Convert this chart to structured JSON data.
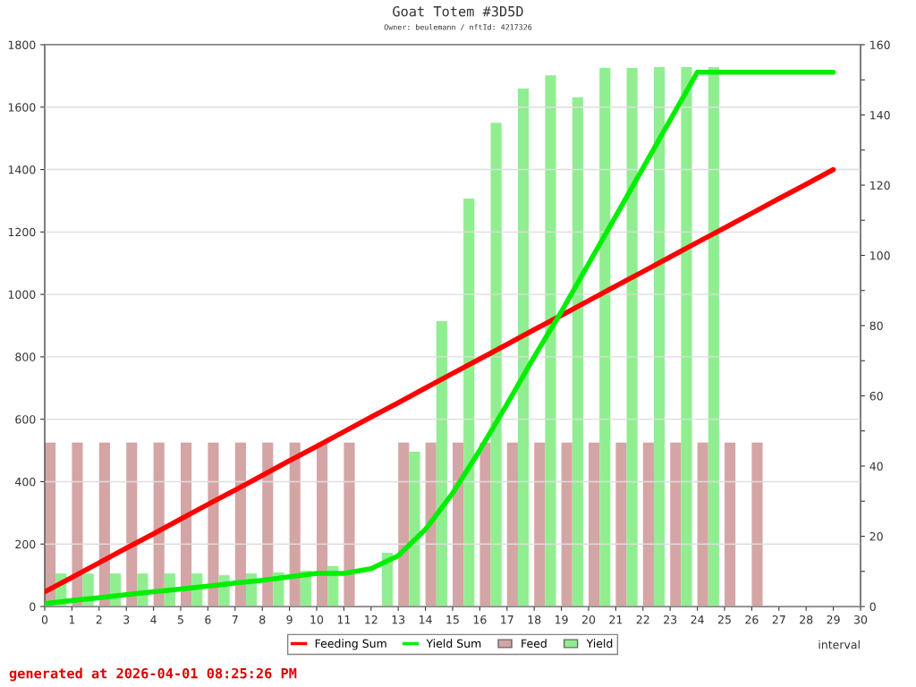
{
  "chart_data": {
    "type": "bar",
    "title": "Goat Totem #3D5D",
    "subtitle": "Owner: beulemann / nftId: 4217326",
    "xlabel": "interval",
    "annotations": [
      "generated at 2026-04-01 08:25:26 PM"
    ],
    "series": [
      {
        "name": "Feeding Sum",
        "type": "line",
        "color": "#ff0000",
        "x": [
          0,
          1,
          2,
          3,
          4,
          5,
          6,
          7,
          8,
          9,
          10,
          11,
          12,
          13,
          14,
          15,
          16,
          17,
          18,
          19,
          20,
          21,
          22,
          23,
          24,
          25,
          26,
          27,
          28,
          29
        ],
        "values": [
          47,
          93,
          140,
          187,
          233,
          280,
          327,
          373,
          420,
          467,
          513,
          560,
          607,
          653,
          700,
          747,
          793,
          840,
          887,
          933,
          980,
          1027,
          1073,
          1120,
          1167,
          1213,
          1260,
          1307,
          1353,
          1400
        ]
      },
      {
        "name": "Yield Sum",
        "type": "line",
        "color": "#00ee00",
        "x": [
          0,
          1,
          2,
          3,
          4,
          5,
          6,
          7,
          8,
          9,
          10,
          11,
          12,
          13,
          14,
          15,
          16,
          17,
          18,
          19,
          20,
          21,
          22,
          23,
          24,
          25,
          26,
          27,
          28,
          29
        ],
        "values": [
          9,
          19,
          28,
          38,
          47,
          56,
          65,
          75,
          84,
          95,
          106,
          106,
          121,
          163,
          247,
          363,
          501,
          648,
          800,
          945,
          1098,
          1251,
          1405,
          1559,
          1712,
          1712,
          1712,
          1712,
          1712,
          1712
        ]
      },
      {
        "name": "Feed",
        "axis": "y2",
        "color": "#d4a5a5",
        "x": [
          0.2,
          1.2,
          2.2,
          3.2,
          4.2,
          5.2,
          6.2,
          7.2,
          8.2,
          9.2,
          10.2,
          11.2,
          13.2,
          14.2,
          15.2,
          16.2,
          17.2,
          18.2,
          19.2,
          20.2,
          21.2,
          22.2,
          23.2,
          24.2,
          25.2,
          26.2
        ],
        "values": [
          46.7,
          46.7,
          46.7,
          46.7,
          46.7,
          46.7,
          46.7,
          46.7,
          46.7,
          46.7,
          46.7,
          46.7,
          46.7,
          46.7,
          46.7,
          46.7,
          46.7,
          46.7,
          46.7,
          46.7,
          46.7,
          46.7,
          46.7,
          46.7,
          46.7,
          46.7
        ]
      },
      {
        "name": "Yield",
        "axis": "y2",
        "color": "#90ee90",
        "x": [
          0.6,
          1.6,
          2.6,
          3.6,
          4.6,
          5.6,
          6.6,
          7.6,
          8.6,
          9.6,
          10.6,
          12.6,
          13.6,
          14.6,
          15.6,
          16.6,
          17.6,
          18.6,
          19.6,
          20.6,
          21.6,
          22.6,
          23.6,
          24.6
        ],
        "values": [
          9.4,
          9.4,
          9.4,
          9.4,
          9.4,
          9.4,
          8.9,
          9.4,
          9.7,
          10.2,
          11.5,
          15.3,
          44.1,
          81.3,
          116.2,
          137.8,
          147.5,
          151.3,
          145.0,
          153.4,
          153.4,
          153.6,
          153.6,
          153.6
        ]
      }
    ],
    "xlim": [
      0,
      30
    ],
    "xticks": [
      0,
      1,
      2,
      3,
      4,
      5,
      6,
      7,
      8,
      9,
      10,
      11,
      12,
      13,
      14,
      15,
      16,
      17,
      18,
      19,
      20,
      21,
      22,
      23,
      24,
      25,
      26,
      27,
      28,
      29,
      30
    ],
    "ylim": [
      0,
      1800
    ],
    "yticks": [
      0,
      200,
      400,
      600,
      800,
      1000,
      1200,
      1400,
      1600,
      1800
    ],
    "y2lim": [
      0,
      160
    ],
    "y2ticks": [
      0,
      {
        "value": 10,
        "label": null
      },
      20,
      {
        "value": 30,
        "label": null
      },
      40,
      {
        "value": 50,
        "label": null
      },
      60,
      {
        "value": 70,
        "label": null
      },
      80,
      {
        "value": 90,
        "label": null
      },
      100,
      {
        "value": 110,
        "label": null
      },
      120,
      {
        "value": 130,
        "label": null
      },
      140,
      {
        "value": 150,
        "label": null
      },
      160
    ],
    "grid": "y",
    "legend": "bottom"
  }
}
